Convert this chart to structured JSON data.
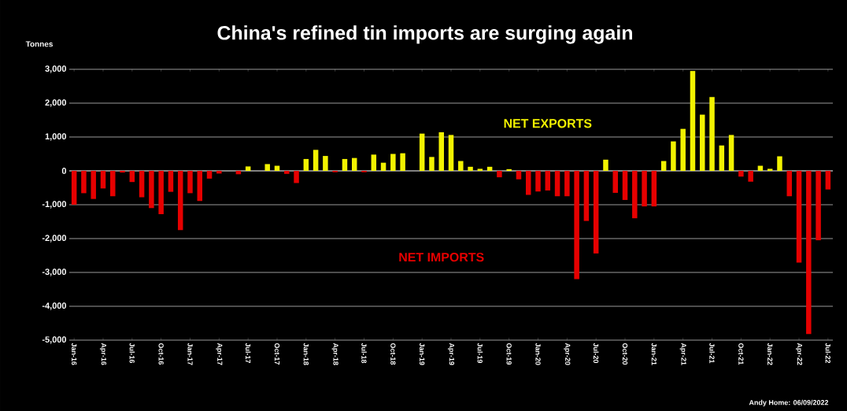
{
  "chart_data": {
    "type": "bar",
    "title": "China's refined tin imports are surging again",
    "categories": [
      "Jan-16",
      null,
      null,
      "Apr-16",
      null,
      null,
      "Jul-16",
      null,
      null,
      "Oct-16",
      null,
      null,
      "Jan-17",
      null,
      null,
      "Apr-17",
      null,
      null,
      "Jul-17",
      null,
      null,
      "Oct-17",
      null,
      null,
      "Jan-18",
      null,
      null,
      "Apr-18",
      null,
      null,
      "Jul-18",
      null,
      null,
      "Oct-18",
      null,
      null,
      "Jan-19",
      null,
      null,
      "Apr-19",
      null,
      null,
      "Jul-19",
      null,
      null,
      "Oct-19",
      null,
      null,
      "Jan-20",
      null,
      null,
      "Apr-20",
      null,
      null,
      "Jul-20",
      null,
      null,
      "Oct-20",
      null,
      null,
      "Jan-21",
      null,
      null,
      "Apr-21",
      null,
      null,
      "Jul-21",
      null,
      null,
      "Oct-21",
      null,
      null,
      "Jan-22",
      null,
      null,
      "Apr-22",
      null,
      null,
      "Jul-22"
    ],
    "values": [
      -1000,
      -660,
      -830,
      -520,
      -750,
      -50,
      -330,
      -780,
      -1100,
      -1280,
      -620,
      -1750,
      -660,
      -890,
      -230,
      -80,
      null,
      -100,
      130,
      null,
      200,
      150,
      -90,
      -360,
      350,
      620,
      440,
      -40,
      350,
      380,
      -40,
      480,
      240,
      500,
      520,
      null,
      1100,
      410,
      1140,
      1060,
      290,
      120,
      60,
      120,
      -190,
      50,
      -250,
      -710,
      -610,
      -580,
      -750,
      -750,
      -3200,
      -1480,
      -2440,
      330,
      -650,
      -860,
      -1400,
      -1050,
      -1050,
      290,
      870,
      1240,
      2950,
      1660,
      2180,
      750,
      1060,
      -170,
      -320,
      150,
      60,
      430,
      -750,
      -2710,
      -4820,
      -2050,
      -550
    ],
    "colors": [
      "#e60000",
      "#e60000",
      "#e60000",
      "#e60000",
      "#e60000",
      "#e60000",
      "#e60000",
      "#e60000",
      "#e60000",
      "#e60000",
      "#e60000",
      "#e60000",
      "#e60000",
      "#e60000",
      "#e60000",
      "#e60000",
      "#e60000",
      "#e60000",
      "#f2f200",
      "#f2f200",
      "#f2f200",
      "#f2f200",
      "#e60000",
      "#e60000",
      "#f2f200",
      "#f2f200",
      "#f2f200",
      "#e60000",
      "#f2f200",
      "#f2f200",
      "#e60000",
      "#f2f200",
      "#f2f200",
      "#f2f200",
      "#f2f200",
      "#e60000",
      "#f2f200",
      "#f2f200",
      "#f2f200",
      "#f2f200",
      "#f2f200",
      "#f2f200",
      "#f2f200",
      "#f2f200",
      "#e60000",
      "#f2f200",
      "#e60000",
      "#e60000",
      "#e60000",
      "#e60000",
      "#e60000",
      "#e60000",
      "#e60000",
      "#e60000",
      "#e60000",
      "#f2f200",
      "#e60000",
      "#e60000",
      "#e60000",
      "#e60000",
      "#e60000",
      "#f2f200",
      "#f2f200",
      "#f2f200",
      "#f2f200",
      "#f2f200",
      "#f2f200",
      "#f2f200",
      "#f2f200",
      "#e60000",
      "#e60000",
      "#f2f200",
      "#f2f200",
      "#f2f200",
      "#e60000",
      "#e60000",
      "#e60000",
      "#e60000",
      "#e60000"
    ],
    "ylim": [
      -5000,
      3000
    ],
    "yticks": [
      {
        "value": -5000,
        "label": "-5,000"
      },
      {
        "value": -4000,
        "label": "-4,000"
      },
      {
        "value": -3000,
        "label": "-3,000"
      },
      {
        "value": -2000,
        "label": "-2,000"
      },
      {
        "value": -1000,
        "label": "-1,000"
      },
      0,
      {
        "value": 1000,
        "label": "1,000"
      },
      {
        "value": 2000,
        "label": "2,000"
      },
      {
        "value": 3000,
        "label": "3,000"
      }
    ],
    "grid": "y",
    "annotations": [
      "Tonnes",
      "NET EXPORTS",
      "NET IMPORTS",
      "Andy Home: 06/09/2022"
    ]
  }
}
